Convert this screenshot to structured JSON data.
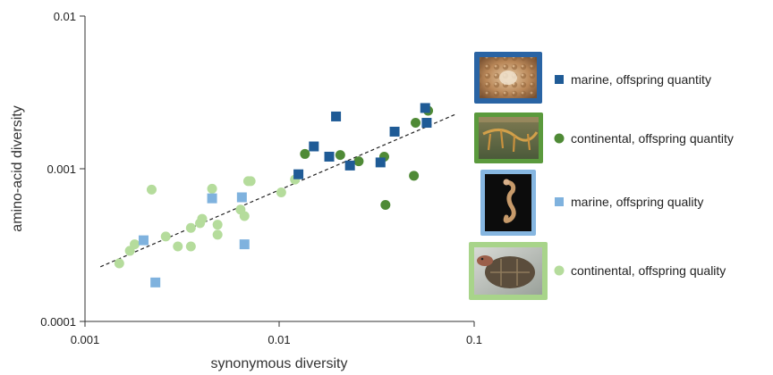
{
  "chart_data": {
    "type": "scatter",
    "x_scale": "log",
    "y_scale": "log",
    "xlim": [
      0.001,
      0.1
    ],
    "ylim": [
      0.0001,
      0.01
    ],
    "xlabel": "synonymous diversity",
    "ylabel": "amino-acid diversity",
    "x_ticks": [
      "0.001",
      "0.01",
      "0.1"
    ],
    "y_ticks": [
      "0.0001",
      "0.001",
      "0.01"
    ],
    "grid": false,
    "legend_position": "right",
    "trendline": {
      "style": "dashed",
      "color": "#222222",
      "x": [
        0.0012,
        0.08
      ],
      "y": [
        0.000228,
        0.00227
      ]
    },
    "series": [
      {
        "name": "marine, offspring quantity",
        "marker": "square",
        "color": "#1f5b96",
        "frame_color": "#2a64a4",
        "icon": "shell-clusters-photo",
        "points": [
          [
            0.0125,
            0.00092
          ],
          [
            0.015,
            0.0014
          ],
          [
            0.018,
            0.0012
          ],
          [
            0.0195,
            0.0022
          ],
          [
            0.023,
            0.00105
          ],
          [
            0.033,
            0.0011
          ],
          [
            0.039,
            0.00175
          ],
          [
            0.056,
            0.0025
          ],
          [
            0.057,
            0.002
          ]
        ]
      },
      {
        "name": "continental, offspring quantity",
        "marker": "circle",
        "color": "#4f8a36",
        "frame_color": "#5b9a3d",
        "icon": "branching-organisms-photo",
        "points": [
          [
            0.0135,
            0.00125
          ],
          [
            0.0205,
            0.00123
          ],
          [
            0.0255,
            0.00112
          ],
          [
            0.0345,
            0.0012
          ],
          [
            0.035,
            0.00058
          ],
          [
            0.049,
            0.0009
          ],
          [
            0.05,
            0.002
          ],
          [
            0.058,
            0.0024
          ]
        ]
      },
      {
        "name": "marine, offspring quality",
        "marker": "square",
        "color": "#7fb2de",
        "frame_color": "#86b6e0",
        "icon": "seahorse-photo",
        "points": [
          [
            0.002,
            0.00034
          ],
          [
            0.0023,
            0.00018
          ],
          [
            0.0045,
            0.00064
          ],
          [
            0.0064,
            0.00065
          ],
          [
            0.0066,
            0.00032
          ]
        ]
      },
      {
        "name": "continental, offspring quality",
        "marker": "circle",
        "color": "#b5dc9c",
        "frame_color": "#a8d48a",
        "icon": "tortoise-photo",
        "points": [
          [
            0.0015,
            0.00024
          ],
          [
            0.0017,
            0.00029
          ],
          [
            0.0018,
            0.00032
          ],
          [
            0.0022,
            0.00073
          ],
          [
            0.0026,
            0.00036
          ],
          [
            0.003,
            0.00031
          ],
          [
            0.0035,
            0.00031
          ],
          [
            0.0035,
            0.00041
          ],
          [
            0.0039,
            0.00044
          ],
          [
            0.004,
            0.00047
          ],
          [
            0.0045,
            0.00074
          ],
          [
            0.0048,
            0.00037
          ],
          [
            0.0048,
            0.00043
          ],
          [
            0.0063,
            0.00054
          ],
          [
            0.0066,
            0.00049
          ],
          [
            0.0069,
            0.00083
          ],
          [
            0.0071,
            0.00083
          ],
          [
            0.0102,
            0.0007
          ],
          [
            0.012,
            0.00085
          ]
        ]
      }
    ]
  }
}
